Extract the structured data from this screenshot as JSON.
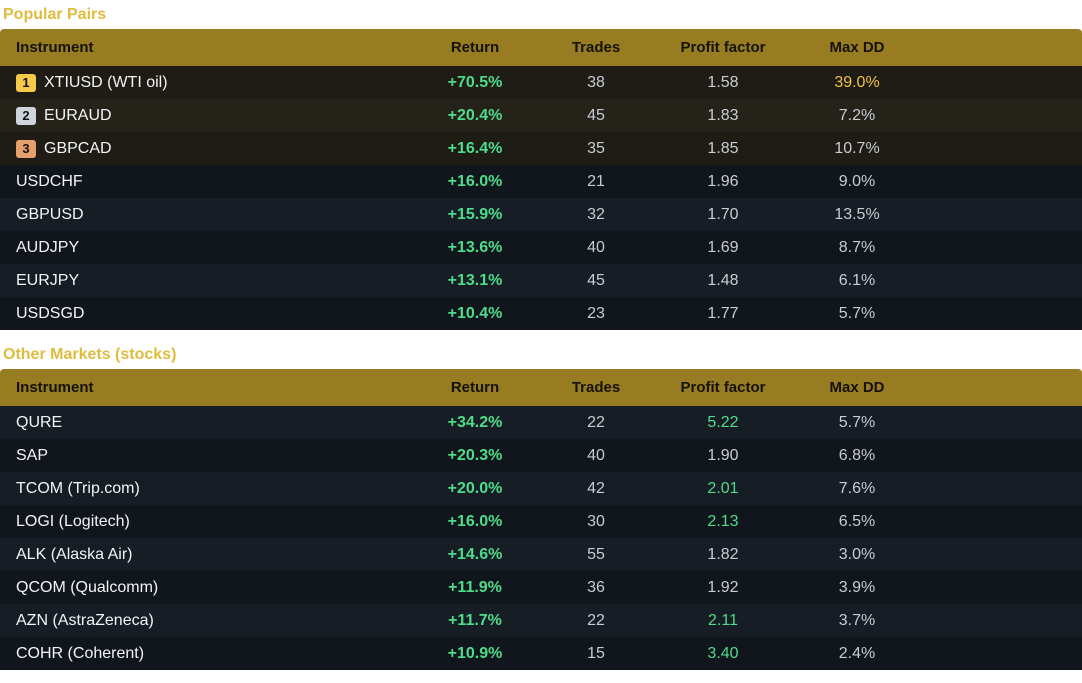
{
  "sections": [
    {
      "title": "Popular Pairs",
      "headers": {
        "instrument": "Instrument",
        "return": "Return",
        "trades": "Trades",
        "profit_factor": "Profit factor",
        "max_dd": "Max DD"
      },
      "rows": [
        {
          "rank": "1",
          "instrument": "XTIUSD (WTI oil)",
          "return": "+70.5%",
          "trades": "38",
          "profit_factor": "1.58",
          "max_dd": "39.0%"
        },
        {
          "rank": "2",
          "instrument": "EURAUD",
          "return": "+20.4%",
          "trades": "45",
          "profit_factor": "1.83",
          "max_dd": "7.2%"
        },
        {
          "rank": "3",
          "instrument": "GBPCAD",
          "return": "+16.4%",
          "trades": "35",
          "profit_factor": "1.85",
          "max_dd": "10.7%"
        },
        {
          "instrument": "USDCHF",
          "return": "+16.0%",
          "trades": "21",
          "profit_factor": "1.96",
          "max_dd": "9.0%"
        },
        {
          "instrument": "GBPUSD",
          "return": "+15.9%",
          "trades": "32",
          "profit_factor": "1.70",
          "max_dd": "13.5%"
        },
        {
          "instrument": "AUDJPY",
          "return": "+13.6%",
          "trades": "40",
          "profit_factor": "1.69",
          "max_dd": "8.7%"
        },
        {
          "instrument": "EURJPY",
          "return": "+13.1%",
          "trades": "45",
          "profit_factor": "1.48",
          "max_dd": "6.1%"
        },
        {
          "instrument": "USDSGD",
          "return": "+10.4%",
          "trades": "23",
          "profit_factor": "1.77",
          "max_dd": "5.7%"
        }
      ]
    },
    {
      "title": "Other Markets (stocks)",
      "headers": {
        "instrument": "Instrument",
        "return": "Return",
        "trades": "Trades",
        "profit_factor": "Profit factor",
        "max_dd": "Max DD"
      },
      "rows": [
        {
          "instrument": "QURE",
          "return": "+34.2%",
          "trades": "22",
          "profit_factor": "5.22",
          "max_dd": "5.7%"
        },
        {
          "instrument": "SAP",
          "return": "+20.3%",
          "trades": "40",
          "profit_factor": "1.90",
          "max_dd": "6.8%"
        },
        {
          "instrument": "TCOM (Trip.com)",
          "return": "+20.0%",
          "trades": "42",
          "profit_factor": "2.01",
          "max_dd": "7.6%"
        },
        {
          "instrument": "LOGI (Logitech)",
          "return": "+16.0%",
          "trades": "30",
          "profit_factor": "2.13",
          "max_dd": "6.5%"
        },
        {
          "instrument": "ALK (Alaska Air)",
          "return": "+14.6%",
          "trades": "55",
          "profit_factor": "1.82",
          "max_dd": "3.0%"
        },
        {
          "instrument": "QCOM (Qualcomm)",
          "return": "+11.9%",
          "trades": "36",
          "profit_factor": "1.92",
          "max_dd": "3.9%"
        },
        {
          "instrument": "AZN (AstraZeneca)",
          "return": "+11.7%",
          "trades": "22",
          "profit_factor": "2.11",
          "max_dd": "3.7%"
        },
        {
          "instrument": "COHR (Coherent)",
          "return": "+10.9%",
          "trades": "15",
          "profit_factor": "3.40",
          "max_dd": "2.4%"
        }
      ]
    }
  ],
  "colors": {
    "section_title": "#e0bc3e",
    "header_bg": "#977c21",
    "positive": "#4fdc8a",
    "dd_warning": "#f1c34a",
    "rank_1": "#f5c94a",
    "rank_2": "#cfd5dc",
    "rank_3": "#e7a06b"
  }
}
